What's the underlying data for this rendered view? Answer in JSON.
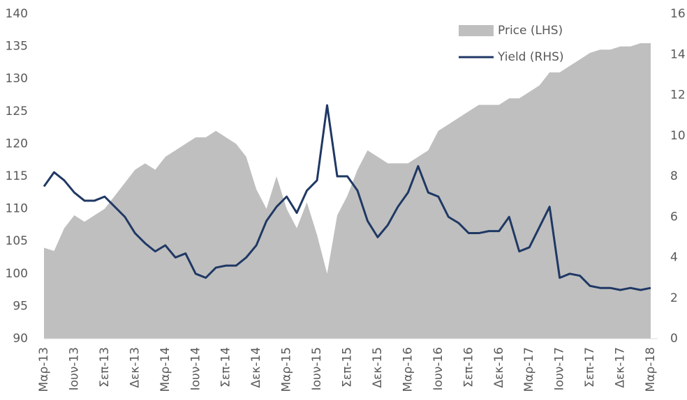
{
  "chart_data": {
    "type": "area-line",
    "categories": [
      "Μαρ-13",
      null,
      null,
      "Ιουν-13",
      null,
      null,
      "Σεπ-13",
      null,
      null,
      "Δεκ-13",
      null,
      null,
      "Μαρ-14",
      null,
      null,
      "Ιουν-14",
      null,
      null,
      "Σεπ-14",
      null,
      null,
      "Δεκ-14",
      null,
      null,
      "Μαρ-15",
      null,
      null,
      "Ιουν-15",
      null,
      null,
      "Σεπ-15",
      null,
      null,
      "Δεκ-15",
      null,
      null,
      "Μαρ-16",
      null,
      null,
      "Ιουν-16",
      null,
      null,
      "Σεπ-16",
      null,
      null,
      "Δεκ-16",
      null,
      null,
      "Μαρ-17",
      null,
      null,
      "Ιουν-17",
      null,
      null,
      "Σεπ-17",
      null,
      null,
      "Δεκ-17",
      null,
      null,
      "Μαρ-18"
    ],
    "series": [
      {
        "name": "Price (LHS)",
        "type": "area",
        "color": "#bfbfbf",
        "axis": "y",
        "values": [
          104,
          103.5,
          107,
          109,
          108,
          109,
          110,
          112,
          114,
          116,
          117,
          116,
          118,
          119,
          120,
          121,
          121,
          122,
          121,
          120,
          118,
          113,
          110,
          115,
          110,
          107,
          111,
          106,
          100,
          109,
          112,
          116,
          119,
          118,
          117,
          117,
          117,
          118,
          119,
          122,
          123,
          124,
          125,
          126,
          126,
          126,
          127,
          127,
          128,
          129,
          131,
          131,
          132,
          133,
          134,
          134.5,
          134.5,
          135,
          135,
          135.5,
          135.5
        ]
      },
      {
        "name": "Yield (RHS)",
        "type": "line",
        "color": "#1f3864",
        "axis": "y2",
        "values": [
          7.5,
          8.2,
          7.8,
          7.2,
          6.8,
          6.8,
          7.0,
          6.5,
          6.0,
          5.2,
          4.7,
          4.3,
          4.6,
          4.0,
          4.2,
          3.2,
          3.0,
          3.5,
          3.6,
          3.6,
          4.0,
          4.6,
          5.8,
          6.5,
          7.0,
          6.2,
          7.3,
          7.8,
          11.5,
          8.0,
          8.0,
          7.3,
          5.8,
          5.0,
          5.6,
          6.5,
          7.2,
          8.5,
          7.2,
          7.0,
          6.0,
          5.7,
          5.2,
          5.2,
          5.3,
          5.3,
          6.0,
          4.3,
          4.5,
          5.5,
          6.5,
          3.0,
          3.2,
          3.1,
          2.6,
          2.5,
          2.5,
          2.4,
          2.5,
          2.4,
          2.5
        ]
      }
    ],
    "ylim": [
      90,
      140
    ],
    "yticks": [
      90,
      95,
      100,
      105,
      110,
      115,
      120,
      125,
      130,
      135,
      140
    ],
    "y2lim": [
      0,
      16
    ],
    "y2ticks": [
      0,
      2,
      4,
      6,
      8,
      10,
      12,
      14,
      16
    ],
    "legend": "top-right"
  }
}
